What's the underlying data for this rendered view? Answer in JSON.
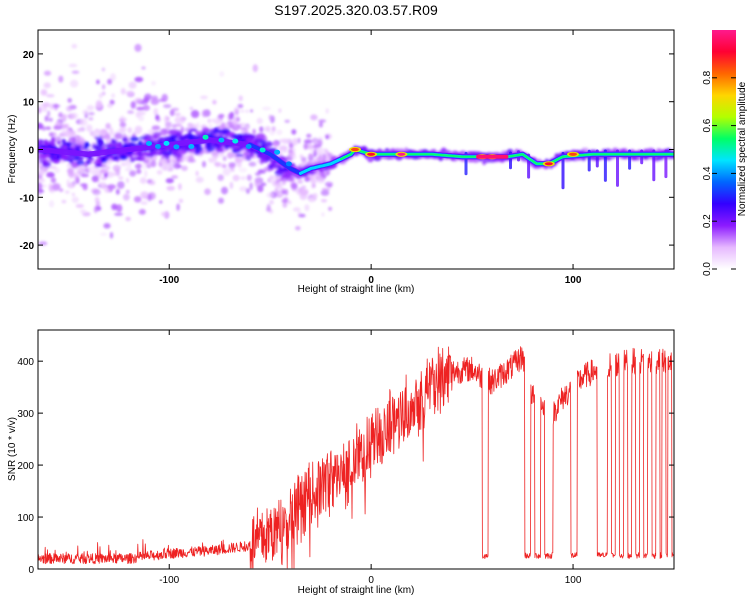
{
  "title": "S197.2025.320.03.57.R09",
  "chart_data": [
    {
      "type": "heatmap",
      "name": "spectrogram",
      "xlabel": "Height of straight line (km)",
      "ylabel": "Frequency (Hz)",
      "xlim": [
        -165,
        150
      ],
      "ylim": [
        -25,
        25
      ],
      "xticks": [
        -100,
        0,
        100
      ],
      "yticks": [
        -20,
        -10,
        0,
        10,
        20
      ],
      "colorbar": {
        "label": "Normalized spectral amplitude",
        "range": [
          0,
          1
        ],
        "ticks": [
          0.0,
          0.2,
          0.4,
          0.6,
          0.8
        ],
        "colors": [
          "#ffffff",
          "#e6b8ff",
          "#8c1aff",
          "#3300ff",
          "#0066ff",
          "#00e5ff",
          "#00ff66",
          "#b3ff00",
          "#ffd500",
          "#ff6600",
          "#ff0033",
          "#ff1a8c"
        ]
      },
      "ridge": [
        {
          "x": -165,
          "y": 0
        },
        {
          "x": -140,
          "y": -1
        },
        {
          "x": -120,
          "y": 0
        },
        {
          "x": -100,
          "y": 1
        },
        {
          "x": -80,
          "y": 2
        },
        {
          "x": -60,
          "y": 1
        },
        {
          "x": -50,
          "y": -1
        },
        {
          "x": -40,
          "y": -4
        },
        {
          "x": -35,
          "y": -5
        },
        {
          "x": -30,
          "y": -4
        },
        {
          "x": -20,
          "y": -3
        },
        {
          "x": -10,
          "y": -1
        },
        {
          "x": -8,
          "y": 0
        },
        {
          "x": 0,
          "y": -1
        },
        {
          "x": 10,
          "y": -1
        },
        {
          "x": 20,
          "y": -1
        },
        {
          "x": 30,
          "y": -1
        },
        {
          "x": 45,
          "y": -1.5
        },
        {
          "x": 55,
          "y": -1.5
        },
        {
          "x": 68,
          "y": -1.5
        },
        {
          "x": 75,
          "y": -1
        },
        {
          "x": 82,
          "y": -3
        },
        {
          "x": 88,
          "y": -3
        },
        {
          "x": 95,
          "y": -1.5
        },
        {
          "x": 110,
          "y": -1
        },
        {
          "x": 130,
          "y": -1
        },
        {
          "x": 150,
          "y": -1
        }
      ],
      "hotspots": [
        {
          "x": 15,
          "y": -1,
          "value": 1.0
        },
        {
          "x": 55,
          "y": -1.5,
          "value": 1.0
        },
        {
          "x": 60,
          "y": -1.5,
          "value": 1.0
        },
        {
          "x": 0,
          "y": -1,
          "value": 0.9
        },
        {
          "x": -8,
          "y": 0,
          "value": 0.85
        },
        {
          "x": 88,
          "y": -3,
          "value": 0.9
        },
        {
          "x": 100,
          "y": -1,
          "value": 0.85
        }
      ]
    },
    {
      "type": "line",
      "name": "snr",
      "xlabel": "Height of straight line (km)",
      "ylabel": "SNR (10 * v/v)",
      "xlim": [
        -165,
        150
      ],
      "ylim": [
        0,
        460
      ],
      "xticks": [
        -100,
        0,
        100
      ],
      "yticks": [
        0,
        100,
        200,
        300,
        400
      ],
      "color": "#ee2222",
      "trend": [
        {
          "x": -165,
          "y": 20
        },
        {
          "x": -120,
          "y": 20
        },
        {
          "x": -100,
          "y": 30
        },
        {
          "x": -80,
          "y": 35
        },
        {
          "x": -60,
          "y": 45
        },
        {
          "x": -40,
          "y": 90
        },
        {
          "x": -30,
          "y": 140
        },
        {
          "x": -20,
          "y": 170
        },
        {
          "x": -10,
          "y": 200
        },
        {
          "x": 0,
          "y": 240
        },
        {
          "x": 10,
          "y": 280
        },
        {
          "x": 20,
          "y": 320
        },
        {
          "x": 30,
          "y": 350
        },
        {
          "x": 40,
          "y": 380
        },
        {
          "x": 50,
          "y": 385
        },
        {
          "x": 55,
          "y": 370
        },
        {
          "x": 60,
          "y": 360
        },
        {
          "x": 70,
          "y": 390
        },
        {
          "x": 75,
          "y": 410
        },
        {
          "x": 80,
          "y": 330
        },
        {
          "x": 90,
          "y": 300
        },
        {
          "x": 95,
          "y": 330
        },
        {
          "x": 105,
          "y": 370
        },
        {
          "x": 115,
          "y": 390
        },
        {
          "x": 130,
          "y": 400
        },
        {
          "x": 150,
          "y": 400
        }
      ],
      "dropouts": [
        [
          55,
          58
        ],
        [
          76,
          79
        ],
        [
          81,
          84
        ],
        [
          86,
          90
        ],
        [
          99,
          102
        ],
        [
          112,
          117
        ],
        [
          119,
          121
        ],
        [
          123,
          125
        ],
        [
          127,
          129
        ],
        [
          131,
          133
        ],
        [
          135,
          137
        ],
        [
          139,
          141
        ],
        [
          143,
          144
        ],
        [
          146,
          147
        ],
        [
          149,
          150
        ]
      ],
      "dropout_level": 20
    }
  ]
}
